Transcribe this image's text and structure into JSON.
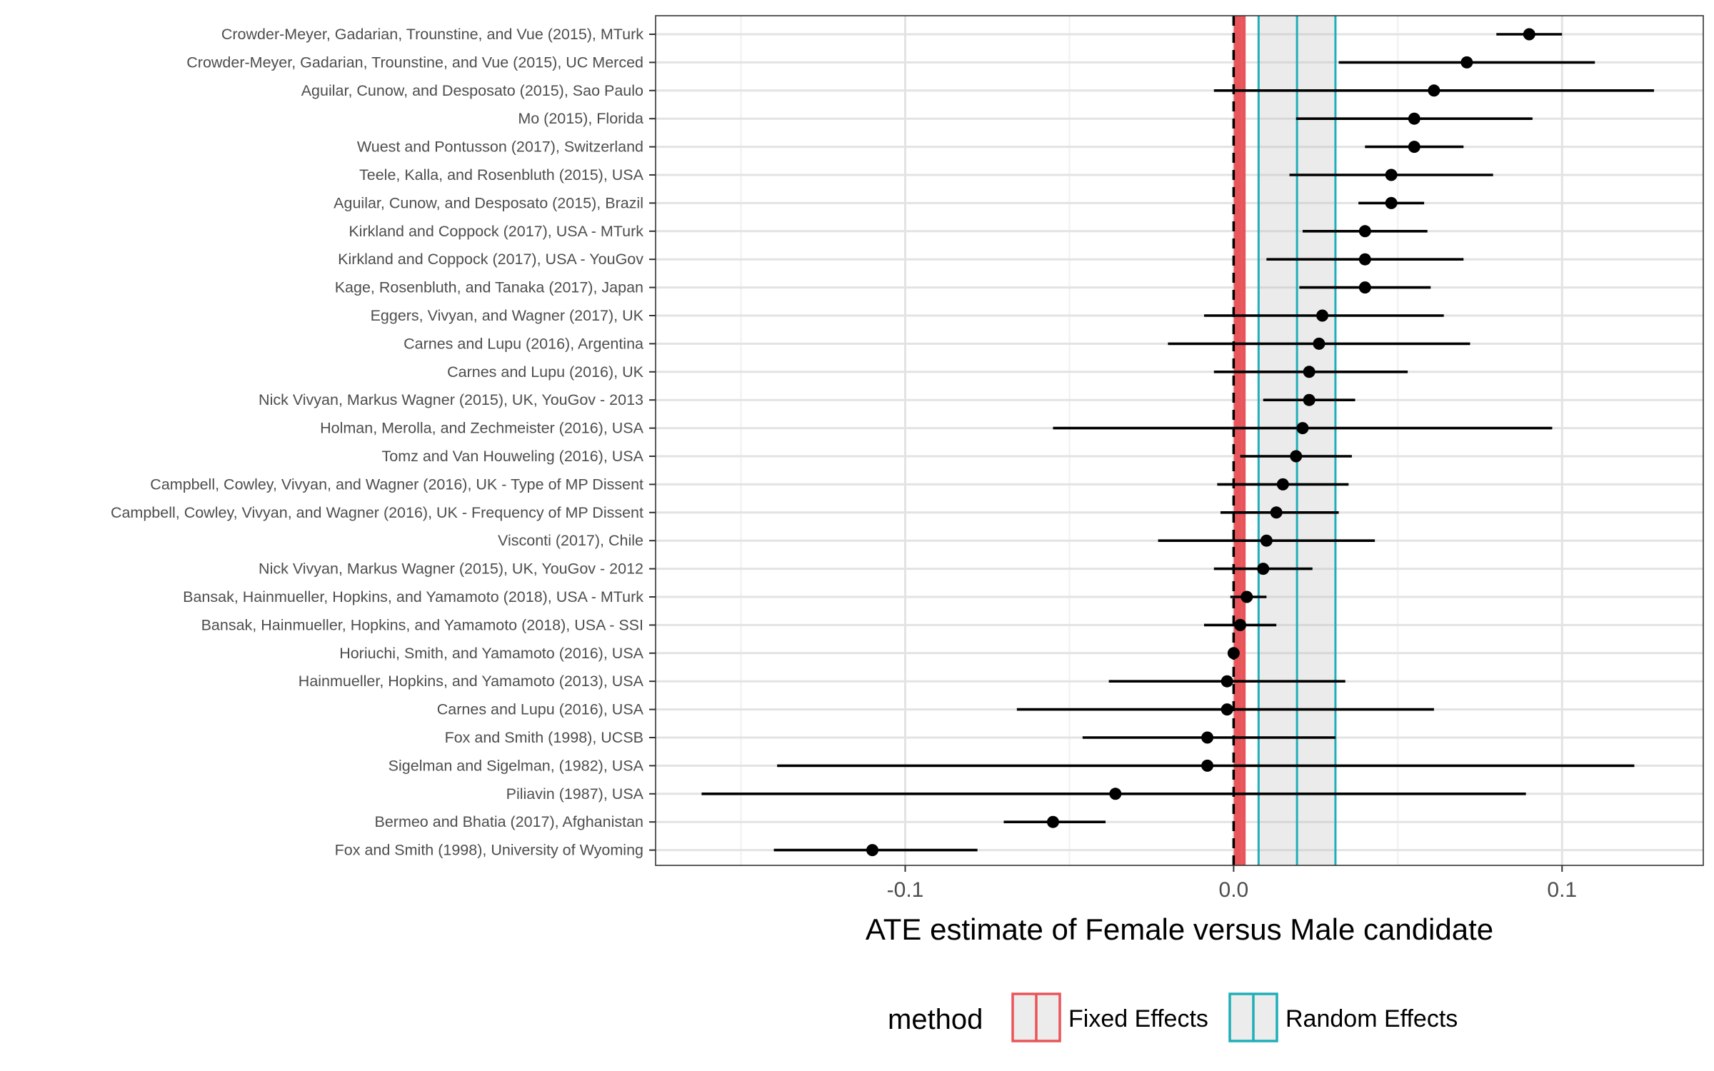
{
  "chart_data": {
    "type": "forest",
    "title": "",
    "xlabel": "ATE estimate of Female versus Male candidate",
    "xlim": [
      -0.176,
      0.143
    ],
    "xticks": [
      -0.1,
      0.0,
      0.1
    ],
    "xtick_labels": [
      "-0.1",
      "0.0",
      "0.1"
    ],
    "grid": true,
    "reference_line": 0.0,
    "legend": {
      "position": "bottom",
      "title": "method",
      "items": [
        {
          "label": "Fixed Effects",
          "color": "#E8555A"
        },
        {
          "label": "Random Effects",
          "color": "#1FAFB8"
        }
      ]
    },
    "pooled": {
      "fixed_effects": {
        "estimate": 0.0017,
        "ci": [
          0.0007,
          0.003
        ]
      },
      "random_effects": {
        "estimate": 0.0193,
        "ci": [
          0.0076,
          0.031
        ]
      }
    },
    "studies": [
      {
        "label": "Crowder-Meyer, Gadarian, Trounstine, and Vue (2015), MTurk",
        "estimate": 0.09,
        "ci": [
          0.08,
          0.1
        ]
      },
      {
        "label": "Crowder-Meyer, Gadarian, Trounstine, and Vue (2015), UC Merced",
        "estimate": 0.071,
        "ci": [
          0.032,
          0.11
        ]
      },
      {
        "label": "Aguilar, Cunow, and Desposato (2015), Sao Paulo",
        "estimate": 0.061,
        "ci": [
          -0.006,
          0.128
        ]
      },
      {
        "label": "Mo (2015), Florida",
        "estimate": 0.055,
        "ci": [
          0.019,
          0.091
        ]
      },
      {
        "label": "Wuest and Pontusson (2017), Switzerland",
        "estimate": 0.055,
        "ci": [
          0.04,
          0.07
        ]
      },
      {
        "label": "Teele, Kalla, and Rosenbluth (2015), USA",
        "estimate": 0.048,
        "ci": [
          0.017,
          0.079
        ]
      },
      {
        "label": "Aguilar, Cunow, and Desposato (2015), Brazil",
        "estimate": 0.048,
        "ci": [
          0.038,
          0.058
        ]
      },
      {
        "label": "Kirkland and Coppock (2017), USA - MTurk",
        "estimate": 0.04,
        "ci": [
          0.021,
          0.059
        ]
      },
      {
        "label": "Kirkland and Coppock (2017), USA - YouGov",
        "estimate": 0.04,
        "ci": [
          0.01,
          0.07
        ]
      },
      {
        "label": "Kage, Rosenbluth, and Tanaka (2017), Japan",
        "estimate": 0.04,
        "ci": [
          0.02,
          0.06
        ]
      },
      {
        "label": "Eggers, Vivyan, and Wagner (2017), UK",
        "estimate": 0.027,
        "ci": [
          -0.009,
          0.064
        ]
      },
      {
        "label": "Carnes and Lupu (2016), Argentina",
        "estimate": 0.026,
        "ci": [
          -0.02,
          0.072
        ]
      },
      {
        "label": "Carnes and Lupu (2016), UK",
        "estimate": 0.023,
        "ci": [
          -0.006,
          0.053
        ]
      },
      {
        "label": "Nick Vivyan, Markus Wagner (2015), UK, YouGov - 2013",
        "estimate": 0.023,
        "ci": [
          0.009,
          0.037
        ]
      },
      {
        "label": "Holman, Merolla, and Zechmeister (2016), USA",
        "estimate": 0.021,
        "ci": [
          -0.055,
          0.097
        ]
      },
      {
        "label": "Tomz and Van Houweling (2016), USA",
        "estimate": 0.019,
        "ci": [
          0.002,
          0.036
        ]
      },
      {
        "label": "Campbell, Cowley, Vivyan, and Wagner (2016), UK - Type of MP Dissent",
        "estimate": 0.015,
        "ci": [
          -0.005,
          0.035
        ]
      },
      {
        "label": "Campbell, Cowley, Vivyan, and Wagner (2016), UK - Frequency of MP Dissent",
        "estimate": 0.013,
        "ci": [
          -0.004,
          0.032
        ]
      },
      {
        "label": "Visconti (2017), Chile",
        "estimate": 0.01,
        "ci": [
          -0.023,
          0.043
        ]
      },
      {
        "label": "Nick Vivyan, Markus Wagner (2015), UK, YouGov - 2012",
        "estimate": 0.009,
        "ci": [
          -0.006,
          0.024
        ]
      },
      {
        "label": "Bansak, Hainmueller, Hopkins, and Yamamoto (2018), USA - MTurk",
        "estimate": 0.004,
        "ci": [
          -0.001,
          0.01
        ]
      },
      {
        "label": "Bansak, Hainmueller, Hopkins, and Yamamoto (2018), USA - SSI",
        "estimate": 0.002,
        "ci": [
          -0.009,
          0.013
        ]
      },
      {
        "label": "Horiuchi, Smith, and Yamamoto (2016), USA",
        "estimate": 0.0,
        "ci": [
          -0.001,
          0.001
        ]
      },
      {
        "label": "Hainmueller, Hopkins, and Yamamoto (2013), USA",
        "estimate": -0.002,
        "ci": [
          -0.038,
          0.034
        ]
      },
      {
        "label": "Carnes and Lupu (2016), USA",
        "estimate": -0.002,
        "ci": [
          -0.066,
          0.061
        ]
      },
      {
        "label": "Fox and Smith (1998), UCSB",
        "estimate": -0.008,
        "ci": [
          -0.046,
          0.031
        ]
      },
      {
        "label": "Sigelman and Sigelman, (1982), USA",
        "estimate": -0.008,
        "ci": [
          -0.139,
          0.122
        ]
      },
      {
        "label": "Piliavin (1987), USA",
        "estimate": -0.036,
        "ci": [
          -0.162,
          0.089
        ]
      },
      {
        "label": "Bermeo and Bhatia (2017), Afghanistan",
        "estimate": -0.055,
        "ci": [
          -0.07,
          -0.039
        ]
      },
      {
        "label": "Fox and Smith (1998), University of Wyoming",
        "estimate": -0.11,
        "ci": [
          -0.14,
          -0.078
        ]
      }
    ]
  }
}
